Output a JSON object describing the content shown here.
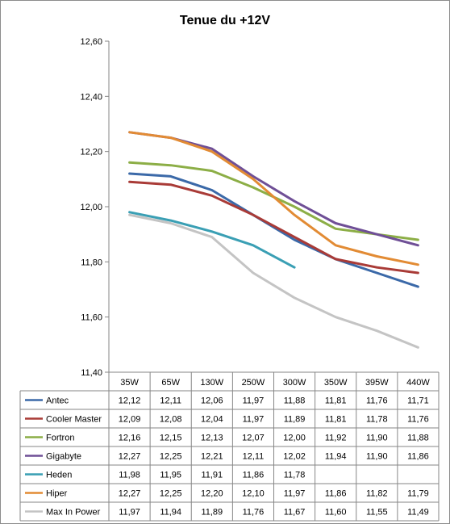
{
  "chart_data": {
    "type": "line",
    "title": "Tenue du +12V",
    "categories": [
      "35W",
      "65W",
      "130W",
      "250W",
      "300W",
      "350W",
      "395W",
      "440W"
    ],
    "ylim": [
      11.4,
      12.6
    ],
    "yticks": [
      "12,60",
      "12,40",
      "12,20",
      "12,00",
      "11,80",
      "11,60",
      "11,40"
    ],
    "ytick_values": [
      12.6,
      12.4,
      12.2,
      12.0,
      11.8,
      11.6,
      11.4
    ],
    "grid": false,
    "legend": "data-table",
    "series": [
      {
        "name": "Antec",
        "color": "#3b69a8",
        "values": [
          12.12,
          12.11,
          12.06,
          11.97,
          11.88,
          11.81,
          11.76,
          11.71
        ],
        "labels": [
          "12,12",
          "12,11",
          "12,06",
          "11,97",
          "11,88",
          "11,81",
          "11,76",
          "11,71"
        ]
      },
      {
        "name": "Cooler Master",
        "color": "#a93b37",
        "values": [
          12.09,
          12.08,
          12.04,
          11.97,
          11.89,
          11.81,
          11.78,
          11.76
        ],
        "labels": [
          "12,09",
          "12,08",
          "12,04",
          "11,97",
          "11,89",
          "11,81",
          "11,78",
          "11,76"
        ]
      },
      {
        "name": "Fortron",
        "color": "#8cae46",
        "values": [
          12.16,
          12.15,
          12.13,
          12.07,
          12.0,
          11.92,
          11.9,
          11.88
        ],
        "labels": [
          "12,16",
          "12,15",
          "12,13",
          "12,07",
          "12,00",
          "11,92",
          "11,90",
          "11,88"
        ]
      },
      {
        "name": "Gigabyte",
        "color": "#6f4f96",
        "values": [
          12.27,
          12.25,
          12.21,
          12.11,
          12.02,
          11.94,
          11.9,
          11.86
        ],
        "labels": [
          "12,27",
          "12,25",
          "12,21",
          "12,11",
          "12,02",
          "11,94",
          "11,90",
          "11,86"
        ]
      },
      {
        "name": "Heden",
        "color": "#3a9fb4",
        "values": [
          11.98,
          11.95,
          11.91,
          11.86,
          11.78,
          null,
          null,
          null
        ],
        "labels": [
          "11,98",
          "11,95",
          "11,91",
          "11,86",
          "11,78",
          "",
          "",
          ""
        ]
      },
      {
        "name": "Hiper",
        "color": "#e28b34",
        "values": [
          12.27,
          12.25,
          12.2,
          12.1,
          11.97,
          11.86,
          11.82,
          11.79
        ],
        "labels": [
          "12,27",
          "12,25",
          "12,20",
          "12,10",
          "11,97",
          "11,86",
          "11,82",
          "11,79"
        ]
      },
      {
        "name": "Max In Power",
        "color": "#c4c4c4",
        "values": [
          11.97,
          11.94,
          11.89,
          11.76,
          11.67,
          11.6,
          11.55,
          11.49
        ],
        "labels": [
          "11,97",
          "11,94",
          "11,89",
          "11,76",
          "11,67",
          "11,60",
          "11,55",
          "11,49"
        ]
      }
    ]
  }
}
